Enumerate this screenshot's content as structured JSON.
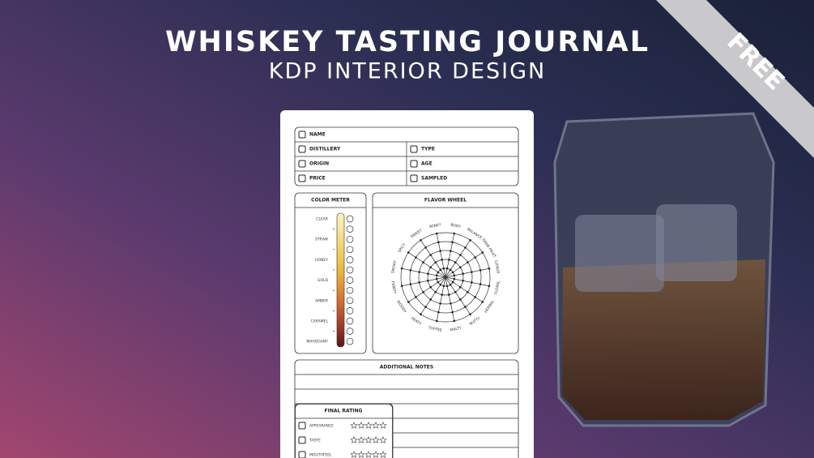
{
  "banner": {
    "title": "WHISKEY TASTING JOURNAL",
    "subtitle": "KDP INTERIOR DESIGN",
    "ribbon": "FREE"
  },
  "form": {
    "fields": [
      "NAME",
      "DISTILLERY",
      "TYPE",
      "ORIGIN",
      "AGE",
      "PRICE",
      "SAMPLED"
    ],
    "color_meter": {
      "title": "COLOR METER",
      "levels": [
        "CLEAR",
        "STRAW",
        "HONEY",
        "GOLD",
        "AMBER",
        "CARAMEL",
        "MAHOGANY"
      ]
    },
    "flavor_wheel": {
      "title": "FLAVOR WHEEL",
      "labels": [
        "WINEY",
        "BODY",
        "BALANCE",
        "DARK FRUIT",
        "CITRUS",
        "FLORAL",
        "HERBAL",
        "NUTTY",
        "MALTY",
        "TOFFEE",
        "PEATY",
        "WOODY",
        "FEINTY",
        "SMOKY",
        "SPICY",
        "SWEET"
      ]
    },
    "notes": {
      "title": "ADDITIONAL NOTES"
    },
    "rating": {
      "title": "FINAL RATING",
      "items": [
        "APPEARANCE",
        "TASTE",
        "MOUTHFEEL"
      ]
    }
  }
}
